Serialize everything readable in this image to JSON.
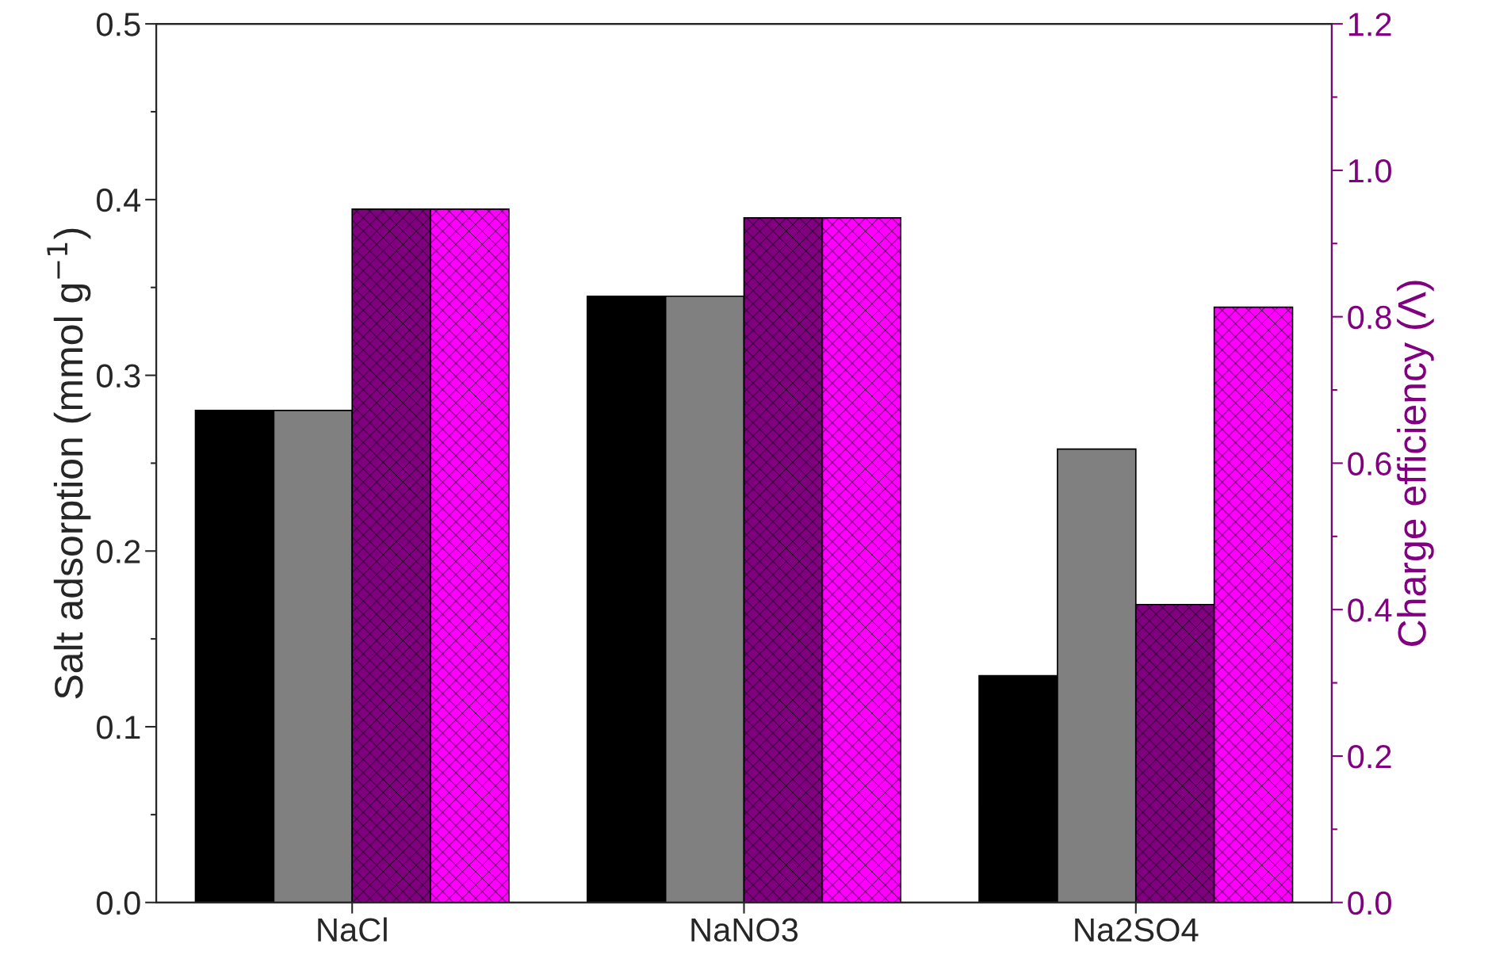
{
  "chart_data": {
    "type": "bar",
    "categories": [
      "NaCl",
      "NaNO3",
      "Na2SO4"
    ],
    "ylabel": "Salt adsorption (mmol g$^{−1}$)",
    "y2label": "Charge efficiency (Λ)",
    "series": [
      {
        "color": "#000000",
        "values": [
          0.28,
          0.345,
          0.129
        ]
      },
      {
        "color": "#808080",
        "values": [
          0.28,
          0.345,
          0.258
        ]
      },
      {
        "color": "#800080",
        "values": [
          0.947,
          0.935,
          0.407
        ],
        "axis": "y2"
      },
      {
        "color": "#ff00ff",
        "values": [
          0.947,
          0.935,
          0.813
        ],
        "axis": "y2"
      }
    ],
    "ylim": [
      0,
      0.5
    ],
    "yticks": [
      {
        "value": 0,
        "label": "0.0"
      },
      0.1,
      0.2,
      0.3,
      0.4,
      0.5
    ],
    "y2lim": [
      0,
      1.2
    ],
    "y2ticks": [
      {
        "value": 0,
        "label": "0.0"
      },
      0.2,
      0.4,
      0.6,
      0.8,
      {
        "value": 1,
        "label": "1.0"
      },
      1.2
    ],
    "grid": false,
    "legend": false
  }
}
